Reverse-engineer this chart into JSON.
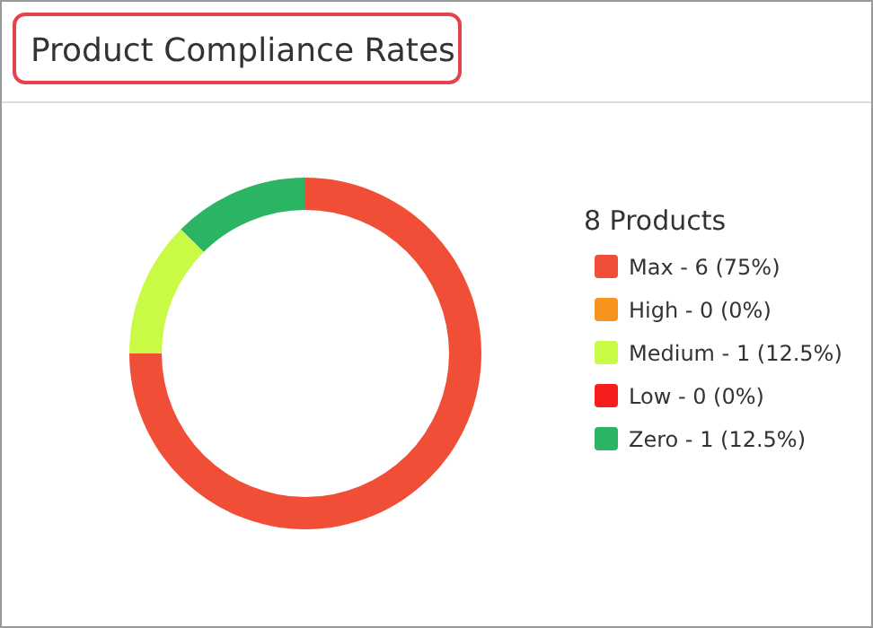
{
  "chart_data": {
    "type": "donut",
    "title": "Product Compliance Rates",
    "legend_title": "8 Products",
    "legend": "right",
    "categories": [
      "Max - 6 (75%)",
      "High - 0 (0%)",
      "Medium - 1 (12.5%)",
      "Low - 0 (0%)",
      "Zero - 1 (12.5%)"
    ],
    "values": [
      75,
      0,
      12.5,
      0,
      12.5
    ],
    "colors": [
      "#f04e37",
      "#f7941d",
      "#c8fa46",
      "#f51d1d",
      "#2bb463"
    ]
  }
}
